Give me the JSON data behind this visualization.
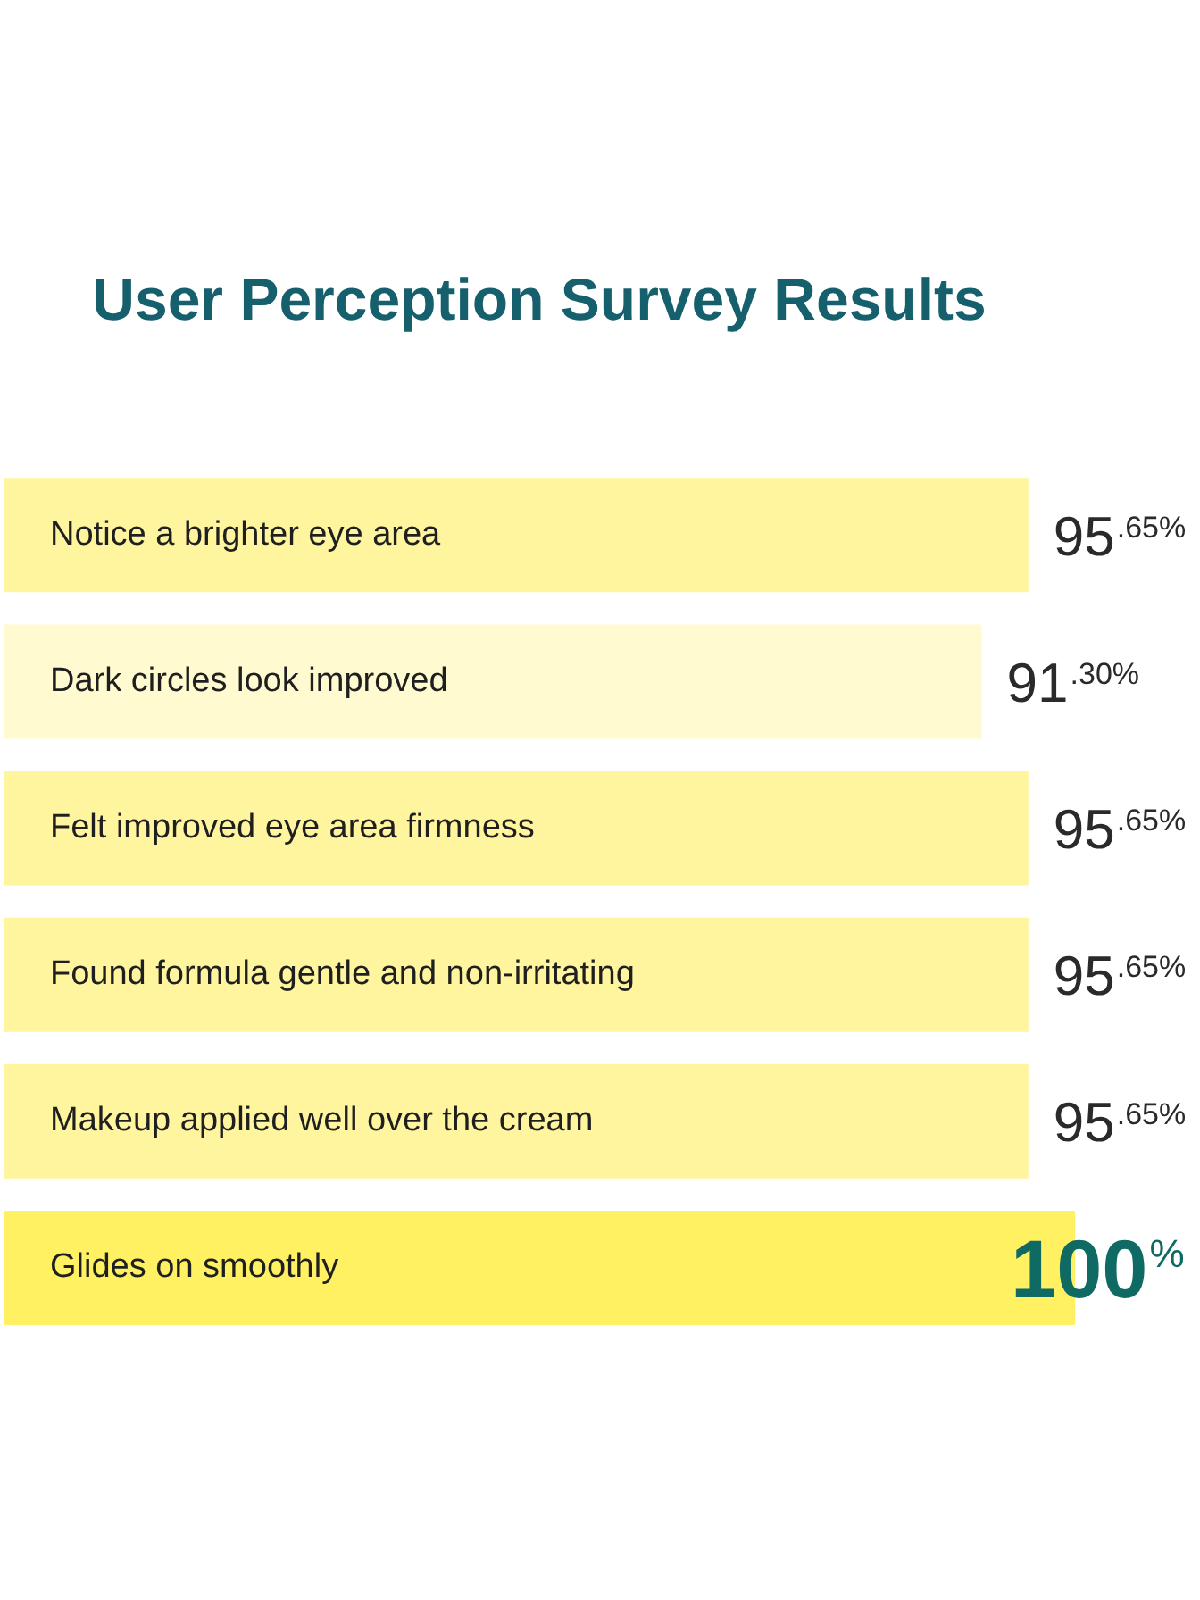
{
  "chart_data": {
    "type": "bar",
    "orientation": "horizontal",
    "title": "User Perception Survey Results",
    "categories": [
      "Notice a brighter eye area",
      "Dark circles look improved",
      "Felt improved eye area firmness",
      "Found formula gentle and non-irritating",
      "Makeup applied well over the cream",
      "Glides on smoothly"
    ],
    "values": [
      95.65,
      91.3,
      95.65,
      95.65,
      95.65,
      100
    ],
    "colors": [
      "#fff59e",
      "#fffad0",
      "#fff59e",
      "#fff59e",
      "#fff59e",
      "#fff162"
    ],
    "value_labels": [
      "95.65%",
      "91.30%",
      "95.65%",
      "95.65%",
      "95.65%",
      "100%"
    ]
  }
}
